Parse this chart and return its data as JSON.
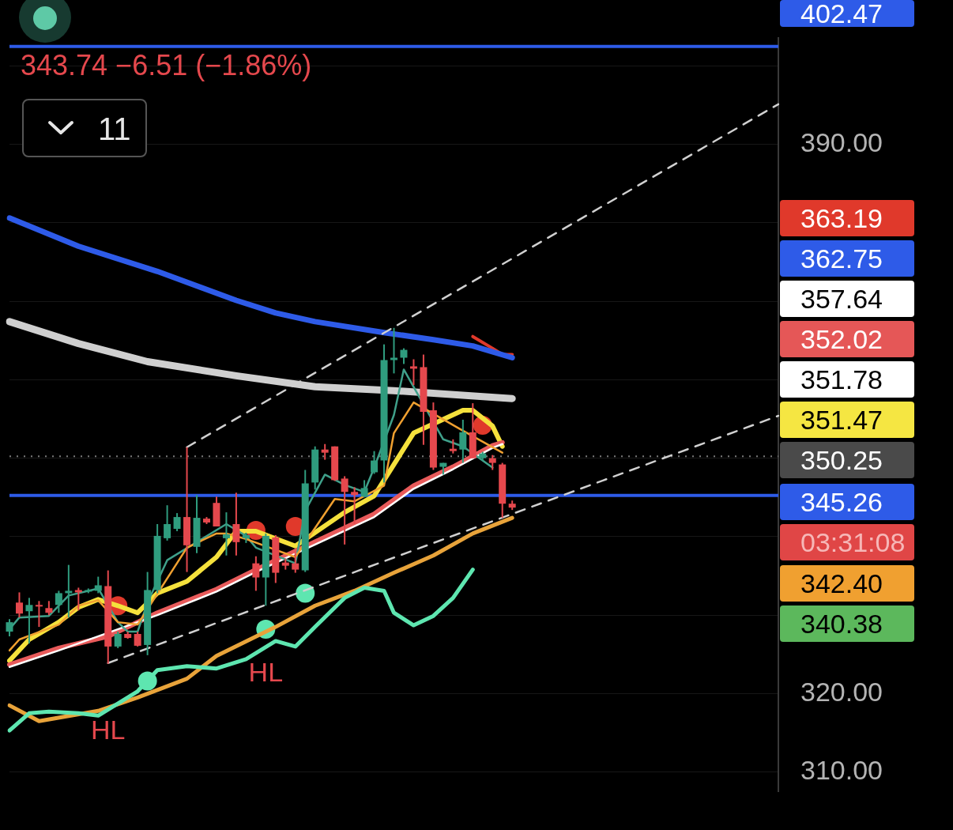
{
  "chart_data": {
    "type": "candlestick",
    "categories": [
      null,
      null,
      null,
      null,
      null,
      null,
      null,
      null,
      null,
      null,
      null,
      null,
      null,
      null,
      null,
      null,
      null,
      null,
      null,
      null,
      null,
      null,
      null,
      null,
      null,
      null,
      null,
      null,
      null,
      null,
      null,
      null,
      null,
      null,
      null,
      null,
      null,
      null,
      null,
      null,
      null,
      null,
      null,
      null,
      null,
      null,
      null,
      null,
      null,
      null,
      null,
      null,
      null,
      null,
      null,
      null,
      null,
      null,
      null,
      null,
      null,
      null,
      null,
      null,
      null,
      null,
      null,
      null,
      null,
      null,
      null,
      null,
      null,
      null,
      null,
      null,
      null,
      null,
      null
    ],
    "ohlc": [
      [
        327.9,
        329.5,
        327.3,
        329.1
      ],
      [
        331.6,
        332.9,
        329.7,
        330.2
      ],
      [
        330.5,
        332.2,
        326.4,
        331.3
      ],
      [
        331.3,
        331.8,
        328.5,
        331.1
      ],
      [
        330.9,
        331.8,
        330.0,
        330.3
      ],
      [
        331.3,
        333.1,
        330.3,
        332.8
      ],
      [
        332.8,
        336.4,
        329.7,
        333.1
      ],
      [
        333.2,
        333.5,
        330.6,
        332.9
      ],
      [
        333.0,
        333.4,
        332.8,
        333.2
      ],
      [
        333.1,
        334.9,
        332.8,
        333.8
      ],
      [
        333.7,
        335.7,
        323.8,
        326.0
      ],
      [
        326.0,
        327.9,
        325.8,
        327.6
      ],
      [
        327.6,
        327.9,
        327.0,
        327.1
      ],
      [
        327.6,
        327.9,
        326.0,
        326.1
      ],
      [
        326.2,
        335.5,
        324.9,
        333.2
      ],
      [
        333.2,
        341.6,
        332.8,
        340.1
      ],
      [
        339.8,
        344.0,
        339.5,
        341.6
      ],
      [
        341.0,
        343.0,
        340.7,
        342.5
      ],
      [
        342.5,
        351.4,
        335.5,
        338.9
      ],
      [
        338.7,
        345.3,
        337.9,
        342.4
      ],
      [
        342.3,
        342.5,
        341.6,
        341.8
      ],
      [
        344.3,
        345.1,
        341.3,
        341.3
      ],
      [
        339.8,
        343.1,
        337.6,
        340.3
      ],
      [
        341.6,
        345.6,
        337.6,
        339.3
      ],
      [
        339.8,
        340.5,
        339.2,
        340.2
      ],
      [
        336.6,
        337.5,
        333.1,
        334.8
      ],
      [
        334.8,
        340.4,
        331.2,
        340.1
      ],
      [
        339.9,
        340.2,
        334.1,
        335.4
      ],
      [
        336.7,
        337.2,
        335.8,
        336.3
      ],
      [
        336.6,
        338.1,
        335.4,
        335.8
      ],
      [
        335.7,
        348.5,
        335.5,
        346.8
      ],
      [
        346.9,
        351.5,
        346.0,
        351.1
      ],
      [
        351.1,
        351.8,
        349.8,
        350.7
      ],
      [
        351.5,
        351.5,
        347.1,
        347.2
      ],
      [
        347.4,
        347.7,
        339.0,
        345.7
      ],
      [
        345.7,
        346.3,
        341.6,
        345.3
      ],
      [
        345.1,
        347.2,
        345.0,
        346.2
      ],
      [
        348.2,
        350.9,
        348.0,
        349.7
      ],
      [
        349.7,
        364.5,
        346.9,
        362.5
      ],
      [
        362.5,
        366.6,
        360.8,
        362.8
      ],
      [
        362.8,
        364.0,
        362.0,
        363.8
      ],
      [
        361.7,
        362.6,
        359.3,
        361.4
      ],
      [
        361.6,
        363.2,
        351.7,
        355.9
      ],
      [
        356.1,
        357.1,
        348.5,
        348.8
      ],
      [
        348.9,
        349.4,
        347.9,
        349.4
      ],
      [
        351.2,
        352.4,
        350.6,
        350.9
      ],
      [
        351.1,
        354.9,
        349.4,
        353.3
      ],
      [
        353.3,
        357.0,
        350.0,
        350.0
      ],
      [
        350.0,
        350.8,
        349.7,
        350.6
      ],
      [
        350.0,
        350.4,
        348.5,
        349.4
      ],
      [
        349.2,
        349.4,
        342.4,
        344.2
      ],
      [
        344.2,
        344.6,
        343.4,
        343.7
      ],
      null,
      null,
      null,
      null,
      null,
      null,
      null,
      null,
      null,
      null,
      null,
      null,
      null,
      null,
      null,
      null,
      null,
      null,
      null,
      null,
      null,
      null,
      null,
      null,
      null,
      null,
      null
    ],
    "colors": [
      "#2f9c7e",
      "#e5484d",
      "#2f9c7e",
      "#e5484d",
      "#e5484d",
      "#2f9c7e",
      "#2f9c7e",
      "#e5484d",
      "#2f9c7e",
      "#2f9c7e",
      "#e5484d",
      "#2f9c7e",
      "#e5484d",
      "#e5484d",
      "#2f9c7e",
      "#2f9c7e",
      "#2f9c7e",
      "#2f9c7e",
      "#e5484d",
      "#2f9c7e",
      "#e5484d",
      "#e5484d",
      "#2f9c7e",
      "#e5484d",
      "#2f9c7e",
      "#e5484d",
      "#2f9c7e",
      "#e5484d",
      "#e5484d",
      "#e5484d",
      "#2f9c7e",
      "#2f9c7e",
      "#e5484d",
      "#e5484d",
      "#e5484d",
      "#e5484d",
      "#2f9c7e",
      "#2f9c7e",
      "#2f9c7e",
      "#2f9c7e",
      "#2f9c7e",
      "#e5484d",
      "#e5484d",
      "#e5484d",
      "#2f9c7e",
      "#e5484d",
      "#2f9c7e",
      "#e5484d",
      "#2f9c7e",
      "#e5484d",
      "#e5484d",
      "#e5484d",
      null,
      null,
      null,
      null,
      null,
      null,
      null,
      null,
      null,
      null,
      null,
      null,
      null,
      null,
      null,
      null,
      null,
      null,
      null,
      null,
      null,
      null,
      null,
      null,
      null,
      null,
      null
    ],
    "series": [
      {
        "type": "line",
        "color": "#d0d0d0",
        "line_style": "dashed",
        "values": [
          null,
          null,
          null,
          null,
          null,
          null,
          null,
          null,
          null,
          null,
          null,
          null,
          null,
          null,
          null,
          null,
          null,
          null,
          351.4,
          null,
          null,
          null,
          null,
          null,
          null,
          null,
          null,
          null,
          null,
          null,
          null,
          null,
          null,
          null,
          null,
          null,
          null,
          null,
          null,
          null,
          null,
          null,
          null,
          null,
          null,
          null,
          null,
          null,
          null,
          null,
          null,
          null,
          null,
          null,
          null,
          null,
          null,
          null,
          null,
          null,
          null,
          null,
          null,
          null,
          null,
          null,
          null,
          null,
          null,
          null,
          null,
          null,
          null,
          null,
          null,
          null,
          null,
          null,
          395.1
        ]
      },
      {
        "type": "line",
        "color": "#d0d0d0",
        "line_style": "dashed",
        "values": [
          null,
          null,
          null,
          null,
          null,
          null,
          null,
          null,
          null,
          null,
          323.9,
          null,
          null,
          null,
          null,
          null,
          null,
          null,
          null,
          null,
          null,
          null,
          null,
          null,
          null,
          null,
          null,
          null,
          null,
          null,
          null,
          null,
          null,
          null,
          null,
          null,
          null,
          null,
          null,
          null,
          null,
          null,
          null,
          null,
          null,
          null,
          null,
          null,
          null,
          null,
          null,
          null,
          null,
          null,
          null,
          null,
          null,
          null,
          null,
          null,
          null,
          null,
          null,
          null,
          null,
          null,
          null,
          null,
          null,
          null,
          null,
          null,
          null,
          null,
          null,
          null,
          null,
          null,
          355.4
        ]
      },
      {
        "type": "line",
        "color": "#5ee6b0",
        "values": [
          315.3,
          null,
          317.5,
          null,
          317.7,
          null,
          null,
          317.5,
          null,
          317.2,
          null,
          null,
          null,
          320.3,
          null,
          323.0,
          null,
          null,
          323.5,
          null,
          null,
          323.2,
          null,
          null,
          324.4,
          null,
          null,
          326.7,
          null,
          326.0,
          null,
          328.5,
          null,
          null,
          332.2,
          null,
          333.5,
          null,
          333.1,
          330.3,
          null,
          328.7,
          null,
          329.9,
          null,
          332.2,
          null,
          335.8,
          null,
          null,
          null,
          null,
          null,
          null,
          null,
          null,
          null,
          null,
          null,
          null,
          null,
          null,
          null,
          null,
          null,
          null,
          null,
          null,
          null,
          null,
          null,
          null,
          null,
          null,
          null,
          null,
          null,
          null,
          null
        ]
      },
      {
        "type": "line",
        "color": "#e8a33a",
        "values": [
          318.5,
          null,
          null,
          316.5,
          null,
          null,
          null,
          null,
          null,
          317.8,
          null,
          null,
          null,
          319.5,
          null,
          null,
          null,
          null,
          321.9,
          null,
          null,
          324.8,
          null,
          null,
          null,
          null,
          null,
          328.5,
          null,
          null,
          null,
          331.2,
          null,
          null,
          null,
          333.1,
          null,
          null,
          null,
          335.4,
          null,
          null,
          null,
          337.6,
          null,
          null,
          null,
          340.4,
          null,
          null,
          null,
          342.4,
          null,
          null,
          null,
          null,
          null,
          null,
          null,
          null,
          null,
          null,
          null,
          null,
          null,
          null,
          null,
          null,
          null,
          null,
          null,
          null,
          null,
          null,
          null,
          null,
          null,
          null,
          null
        ]
      },
      {
        "type": "line",
        "color": "#f0a030",
        "values": [
          325.5,
          326.9,
          null,
          null,
          null,
          328.8,
          null,
          331.2,
          null,
          331.9,
          null,
          329.1,
          null,
          328.8,
          null,
          null,
          null,
          null,
          338.6,
          null,
          null,
          340.4,
          340.4,
          null,
          339.7,
          null,
          null,
          null,
          null,
          337.4,
          null,
          null,
          null,
          344.8,
          null,
          344.5,
          null,
          null,
          346.5,
          353.2,
          null,
          357.1,
          null,
          null,
          null,
          null,
          353.5,
          null,
          null,
          null,
          350.7,
          null,
          null,
          null,
          null,
          null,
          null,
          null,
          null,
          null,
          null,
          null,
          null,
          null,
          null,
          null,
          null,
          null,
          null,
          null,
          null,
          null,
          null,
          null,
          null,
          null,
          null,
          null,
          null
        ]
      },
      {
        "type": "line",
        "color": "#3fa08a",
        "values": [
          328.2,
          329.7,
          null,
          null,
          329.9,
          null,
          332.5,
          null,
          null,
          333.4,
          null,
          329.1,
          327.9,
          327.9,
          331.6,
          null,
          337.0,
          null,
          null,
          null,
          null,
          null,
          341.6,
          null,
          340.1,
          338.6,
          null,
          null,
          null,
          336.6,
          343.3,
          null,
          347.9,
          null,
          346.6,
          null,
          345.7,
          348.8,
          null,
          355.5,
          361.3,
          null,
          null,
          null,
          352.4,
          null,
          351.5,
          null,
          null,
          348.8,
          null,
          null,
          null,
          null,
          null,
          null,
          null,
          null,
          null,
          null,
          null,
          null,
          null,
          null,
          null,
          null,
          null,
          null,
          null,
          null,
          null,
          null,
          null,
          null,
          null,
          null,
          null,
          null,
          null
        ]
      },
      {
        "type": "line",
        "color": "#ffffff",
        "values": [
          323.4,
          null,
          null,
          null,
          null,
          325.5,
          null,
          null,
          null,
          null,
          null,
          null,
          null,
          null,
          null,
          330.0,
          null,
          null,
          null,
          null,
          null,
          333.0,
          null,
          null,
          null,
          335.5,
          null,
          null,
          null,
          null,
          null,
          null,
          null,
          null,
          null,
          null,
          null,
          342.5,
          null,
          null,
          null,
          346.1,
          null,
          null,
          null,
          348.6,
          null,
          null,
          null,
          351.3,
          351.8,
          null,
          null,
          null,
          null,
          null,
          null,
          null,
          null,
          null,
          null,
          null,
          null,
          null,
          null,
          null,
          null,
          null,
          null,
          null,
          null,
          null,
          null,
          null,
          null,
          null,
          null,
          null,
          null
        ]
      },
      {
        "type": "line",
        "color": "#e85a5a",
        "values": [
          323.7,
          null,
          null,
          null,
          null,
          325.8,
          null,
          null,
          null,
          null,
          327.3,
          null,
          null,
          null,
          null,
          330.3,
          null,
          null,
          null,
          null,
          null,
          333.3,
          null,
          null,
          null,
          335.8,
          null,
          null,
          null,
          null,
          null,
          null,
          null,
          null,
          null,
          null,
          null,
          342.9,
          null,
          null,
          null,
          346.5,
          null,
          null,
          null,
          348.9,
          null,
          null,
          null,
          351.6,
          352.0,
          null,
          null,
          null,
          null,
          null,
          null,
          null,
          null,
          null,
          null,
          null,
          null,
          null,
          null,
          null,
          null,
          null,
          null,
          null,
          null,
          null,
          null,
          null,
          null,
          null,
          null,
          null,
          null
        ]
      },
      {
        "type": "line",
        "color": "#f5e13c",
        "values": [
          324.2,
          null,
          326.9,
          null,
          null,
          329.1,
          null,
          331.0,
          null,
          332.0,
          null,
          331.2,
          null,
          330.3,
          null,
          332.8,
          null,
          null,
          334.3,
          null,
          null,
          337.4,
          null,
          340.7,
          null,
          340.7,
          null,
          null,
          null,
          338.8,
          null,
          null,
          null,
          null,
          343.1,
          null,
          null,
          345.2,
          null,
          null,
          null,
          353.2,
          null,
          null,
          null,
          null,
          356.1,
          356.1,
          null,
          354.1,
          351.5,
          null,
          null,
          null,
          null,
          null,
          null,
          null,
          null,
          null,
          null,
          null,
          null,
          null,
          null,
          null,
          null,
          null,
          null,
          null,
          null,
          null,
          null,
          null,
          null,
          null,
          null,
          null,
          null
        ]
      },
      {
        "type": "line",
        "color": "#cfcfcf",
        "values": [
          367.4,
          null,
          null,
          null,
          null,
          null,
          null,
          364.6,
          null,
          null,
          null,
          null,
          null,
          null,
          362.3,
          null,
          null,
          null,
          null,
          null,
          null,
          null,
          null,
          360.5,
          null,
          null,
          null,
          null,
          null,
          null,
          null,
          359.1,
          null,
          null,
          null,
          null,
          null,
          null,
          null,
          358.6,
          null,
          null,
          null,
          null,
          null,
          null,
          null,
          null,
          null,
          null,
          null,
          357.6,
          null,
          null,
          null,
          null,
          null,
          null,
          null,
          null,
          null,
          null,
          null,
          null,
          null,
          null,
          null,
          null,
          null,
          null,
          null,
          null,
          null,
          null,
          null,
          null,
          null,
          null,
          null
        ]
      },
      {
        "type": "line",
        "color": "#2e5be8",
        "values": [
          380.6,
          null,
          null,
          null,
          null,
          null,
          null,
          377.0,
          null,
          null,
          null,
          null,
          null,
          null,
          null,
          373.8,
          null,
          null,
          null,
          null,
          null,
          null,
          null,
          370.1,
          null,
          null,
          null,
          368.5,
          null,
          null,
          null,
          367.4,
          null,
          null,
          null,
          null,
          null,
          null,
          366.0,
          null,
          null,
          null,
          null,
          365.1,
          null,
          null,
          null,
          364.3,
          null,
          null,
          null,
          362.8,
          null,
          null,
          null,
          null,
          null,
          null,
          null,
          null,
          null,
          null,
          null,
          null,
          null,
          null,
          null,
          null,
          null,
          null,
          null,
          null,
          null,
          null,
          null,
          null,
          null,
          null,
          null
        ]
      },
      {
        "type": "line",
        "color": "#e0392b",
        "values": [
          null,
          null,
          null,
          null,
          null,
          null,
          null,
          null,
          null,
          null,
          null,
          null,
          null,
          null,
          null,
          null,
          null,
          null,
          null,
          null,
          null,
          null,
          null,
          null,
          null,
          null,
          null,
          null,
          null,
          null,
          null,
          null,
          null,
          null,
          null,
          null,
          null,
          null,
          null,
          null,
          null,
          null,
          null,
          null,
          null,
          null,
          null,
          365.5,
          null,
          364.0,
          363.2,
          363.2,
          null,
          null,
          null,
          null,
          null,
          null,
          null,
          null,
          null,
          null,
          null,
          null,
          null,
          null,
          null,
          null,
          null,
          null,
          null,
          null,
          null,
          null,
          null,
          null,
          null,
          null,
          null
        ]
      },
      {
        "type": "scatter",
        "color": "#5ee6b0",
        "marker": "circle",
        "values": [
          null,
          null,
          null,
          null,
          null,
          null,
          null,
          null,
          null,
          null,
          null,
          null,
          null,
          null,
          321.6,
          null,
          null,
          null,
          null,
          null,
          null,
          null,
          null,
          null,
          null,
          null,
          328.2,
          null,
          null,
          null,
          332.8,
          null,
          null,
          null,
          null,
          null,
          null,
          null,
          null,
          null,
          null,
          null,
          null,
          null,
          null,
          null,
          null,
          null,
          null,
          null,
          null,
          null,
          null,
          null,
          null,
          null,
          null,
          null,
          null,
          null,
          null,
          null,
          null,
          null,
          null,
          null,
          null,
          null,
          null,
          null,
          null,
          null,
          null,
          null,
          null,
          null,
          null,
          null,
          null
        ]
      },
      {
        "type": "scatter",
        "color": "#e0392b",
        "marker": "circle",
        "values": [
          null,
          null,
          null,
          null,
          null,
          null,
          null,
          null,
          null,
          null,
          null,
          331.2,
          null,
          null,
          null,
          null,
          null,
          null,
          null,
          null,
          null,
          null,
          null,
          null,
          null,
          340.8,
          null,
          null,
          null,
          341.3,
          null,
          null,
          null,
          null,
          null,
          null,
          null,
          null,
          null,
          null,
          null,
          null,
          null,
          null,
          null,
          null,
          null,
          null,
          354.2,
          null,
          null,
          null,
          null,
          null,
          null,
          null,
          null,
          null,
          null,
          null,
          null,
          null,
          null,
          null,
          null,
          null,
          null,
          null,
          null,
          null,
          null,
          null,
          null,
          null,
          null,
          null,
          null,
          null,
          null
        ]
      }
    ],
    "ylim": [
      307.5,
      403.5
    ],
    "yticks": [
      {
        "value": 310,
        "label": "310.00"
      },
      {
        "value": 320,
        "label": "320.00"
      },
      {
        "value": 330,
        "label": null
      },
      {
        "value": 340,
        "label": null
      },
      {
        "value": 350,
        "label": null
      },
      {
        "value": 360,
        "label": null
      },
      {
        "value": 370,
        "label": null
      },
      {
        "value": 380,
        "label": null
      },
      {
        "value": 390,
        "label": "390.00"
      },
      {
        "value": 400,
        "label": null
      }
    ],
    "ref_lines": [
      {
        "axis": "y",
        "value": 402.47,
        "color": "#2e5be8"
      },
      {
        "axis": "y",
        "value": 345.26,
        "color": "#2e5be8"
      },
      {
        "axis": "y",
        "value": 350.25,
        "color": "#7a7a7a",
        "line_style": "dotted"
      }
    ],
    "annotations": [
      "343.74 −6.51 (−1.86%)",
      "11",
      "402.47",
      "363.19",
      "362.75",
      "357.64",
      "352.02",
      "351.78",
      "351.47",
      "350.25",
      "345.26",
      "03:31:08",
      "342.40",
      "340.38",
      {
        "text": "HL",
        "y": 323.8
      },
      {
        "text": "HL",
        "y": 331.2
      }
    ],
    "grid": "y",
    "tick_labels": "y",
    "legend": false
  }
}
